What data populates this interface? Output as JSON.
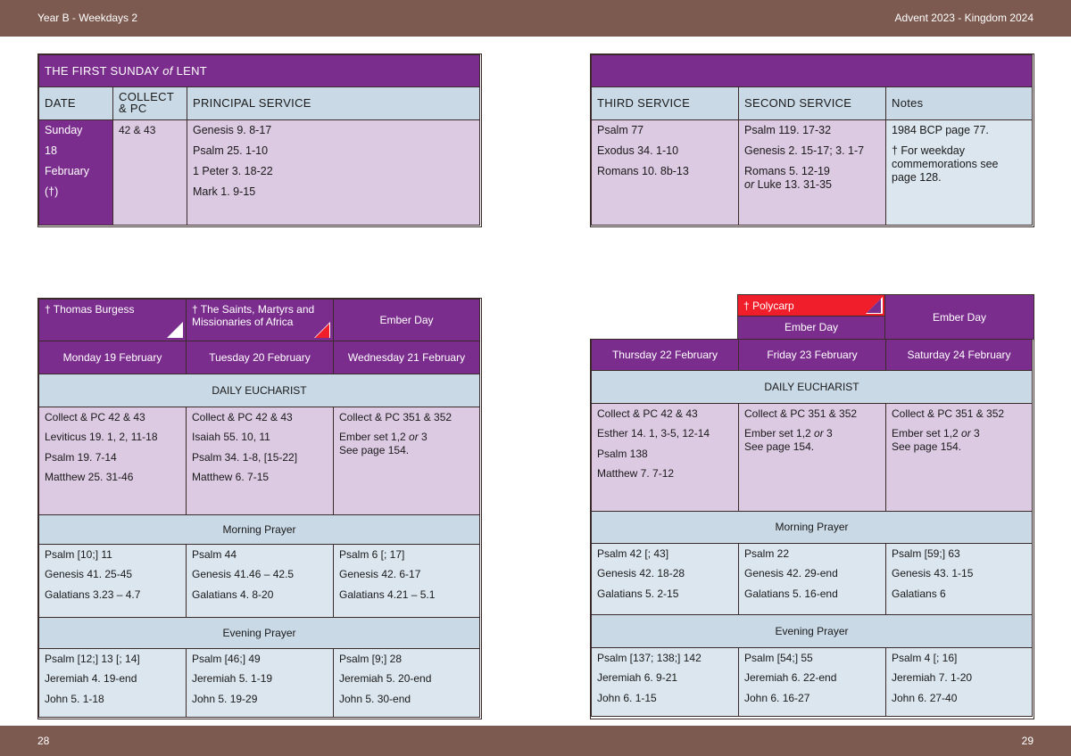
{
  "header": {
    "left": "Year B - Weekdays 2",
    "right": "Advent  2023 - Kingdom 2024"
  },
  "footer": {
    "left_page": "28",
    "right_page": "29"
  },
  "sunday": {
    "title_prefix": "THE FIRST SUNDAY ",
    "title_italic": "of",
    "title_suffix": " LENT",
    "columns": {
      "date": "DATE",
      "collect_1": "COLLECT",
      "collect_2": "& PC",
      "principal": "PRINCIPAL SERVICE",
      "third": "THIRD SERVICE",
      "second": "SECOND SERVICE",
      "notes": "Notes"
    },
    "date_lines": [
      "Sunday",
      "18",
      "February",
      "(†)"
    ],
    "collect": "42 & 43",
    "principal": [
      "Genesis 9. 8-17",
      "Psalm 25. 1-10",
      "1 Peter 3. 18-22",
      "Mark 1. 9-15"
    ],
    "third": [
      "Psalm 77",
      "Exodus 34. 1-10",
      "Romans 10. 8b-13"
    ],
    "second": [
      "Psalm 119. 17-32",
      "Genesis 2. 15-17; 3. 1-7",
      "Romans 5. 12-19"
    ],
    "second_or": "or",
    "second_alt": " Luke 13. 31-35",
    "notes": [
      "1984 BCP page 77.",
      "† For weekday commemorations see page 128."
    ]
  },
  "week_left": {
    "commemorations": [
      "† Thomas Burgess",
      "† The Saints, Martyrs and Missionaries of Africa",
      "Ember Day"
    ],
    "days": [
      "Monday 19 February",
      "Tuesday 20 February",
      "Wednesday 21 February"
    ],
    "eucharist_label": "DAILY EUCHARIST",
    "eucharist": [
      [
        "Collect & PC 42 & 43",
        "Leviticus 19. 1, 2, 11-18",
        "Psalm 19. 7-14",
        "Matthew 25. 31-46"
      ],
      [
        "Collect & PC 42 & 43",
        "Isaiah 55. 10, 11",
        "Psalm 34. 1-8, [15-22]",
        "Matthew 6. 7-15"
      ],
      [
        "Collect & PC 351 & 352"
      ]
    ],
    "ember_text_a": "Ember set 1,2 ",
    "ember_or": "or",
    "ember_text_b": " 3",
    "ember_see": "See page 154.",
    "morning_label": "Morning Prayer",
    "morning": [
      [
        "Psalm [10;] 11",
        "Genesis 41. 25-45",
        "Galatians 3.23 – 4.7"
      ],
      [
        "Psalm 44",
        "Genesis 41.46 – 42.5",
        "Galatians 4. 8-20"
      ],
      [
        "Psalm 6 [; 17]",
        "Genesis 42. 6-17",
        "Galatians 4.21 – 5.1"
      ]
    ],
    "evening_label": "Evening Prayer",
    "evening": [
      [
        "Psalm [12;] 13 [; 14]",
        "Jeremiah 4. 19-end",
        "John 5. 1-18"
      ],
      [
        "Psalm [46;] 49",
        "Jeremiah 5. 1-19",
        "John 5. 19-29"
      ],
      [
        "Psalm [9;] 28",
        "Jeremiah 5. 20-end",
        "John 5. 30-end"
      ]
    ]
  },
  "week_right": {
    "polycarp": "† Polycarp",
    "friday_ember": "Ember Day",
    "saturday_ember": "Ember Day",
    "days": [
      "Thursday 22 February",
      "Friday 23 February",
      "Saturday 24 February"
    ],
    "eucharist_label": "DAILY EUCHARIST",
    "eucharist": [
      [
        "Collect & PC 42 & 43",
        "Esther 14. 1, 3-5, 12-14",
        "Psalm 138",
        "Matthew 7. 7-12"
      ],
      [
        "Collect & PC 351 & 352"
      ],
      [
        "Collect & PC 351 & 352"
      ]
    ],
    "ember_text_a": "Ember set 1,2 ",
    "ember_or": "or",
    "ember_text_b": " 3",
    "ember_see": "See page 154.",
    "morning_label": "Morning Prayer",
    "morning": [
      [
        "Psalm 42 [; 43]",
        "Genesis 42. 18-28",
        "Galatians 5. 2-15"
      ],
      [
        "Psalm 22",
        "Genesis 42. 29-end",
        "Galatians 5. 16-end"
      ],
      [
        "Psalm [59;] 63",
        "Genesis 43. 1-15",
        "Galatians 6"
      ]
    ],
    "evening_label": "Evening Prayer",
    "evening": [
      [
        "Psalm [137; 138;] 142",
        "Jeremiah 6. 9-21",
        "John 6. 1-15"
      ],
      [
        "Psalm [54;] 55",
        "Jeremiah 6. 22-end",
        "John 6. 16-27"
      ],
      [
        "Psalm 4 [; 16]",
        "Jeremiah 7. 1-20",
        "John 6. 27-40"
      ]
    ]
  },
  "colors": {
    "band": "#7c5a50",
    "purple": "#7b2d8e",
    "lilac": "#dcc9e2",
    "blue": "#c9d9e6",
    "pale": "#dbe6ef",
    "red": "#f01e2a"
  }
}
